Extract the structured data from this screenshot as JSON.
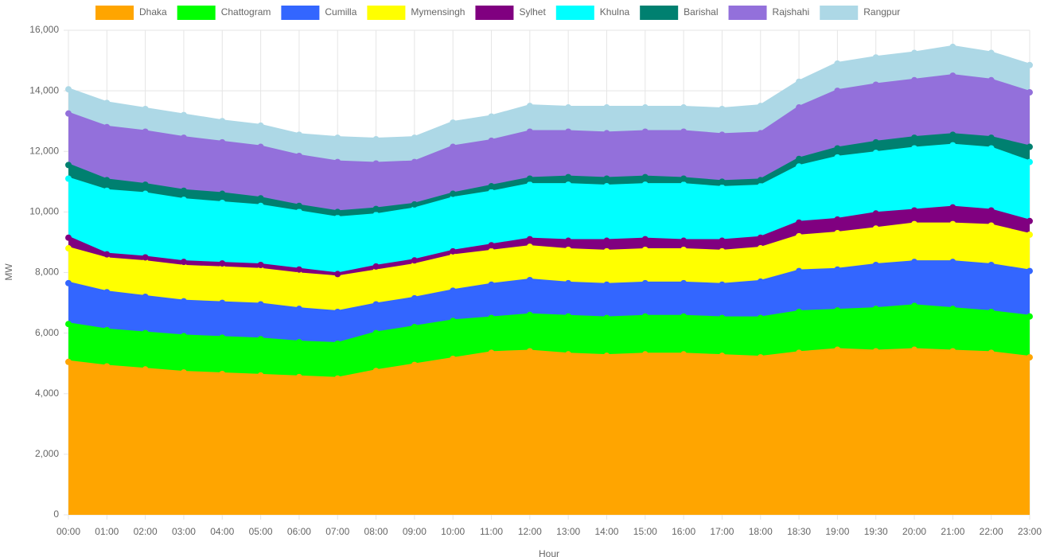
{
  "chart_data": {
    "type": "stacked_area",
    "x_label": "Hour",
    "y_label": "MW",
    "categories": [
      "00:00",
      "01:00",
      "02:00",
      "03:00",
      "04:00",
      "05:00",
      "06:00",
      "07:00",
      "08:00",
      "09:00",
      "10:00",
      "11:00",
      "12:00",
      "13:00",
      "14:00",
      "15:00",
      "16:00",
      "17:00",
      "18:00",
      "18:30",
      "19:00",
      "19:30",
      "20:00",
      "21:00",
      "22:00",
      "23:00"
    ],
    "series": [
      {
        "name": "Dhaka",
        "color": "#ffa500",
        "values": [
          5050,
          4900,
          4800,
          4700,
          4650,
          4600,
          4550,
          4500,
          4750,
          4950,
          5150,
          5350,
          5400,
          5300,
          5250,
          5300,
          5300,
          5250,
          5200,
          5350,
          5450,
          5400,
          5450,
          5400,
          5350,
          5200
        ]
      },
      {
        "name": "Chattogram",
        "color": "#00ff00",
        "values": [
          1250,
          1200,
          1200,
          1200,
          1200,
          1200,
          1150,
          1150,
          1250,
          1250,
          1250,
          1150,
          1200,
          1250,
          1250,
          1250,
          1250,
          1250,
          1300,
          1350,
          1300,
          1400,
          1450,
          1400,
          1350,
          1350
        ]
      },
      {
        "name": "Cumilla",
        "color": "#3366ff",
        "values": [
          1350,
          1250,
          1200,
          1150,
          1150,
          1150,
          1100,
          1050,
          950,
          950,
          1000,
          1100,
          1150,
          1100,
          1100,
          1100,
          1100,
          1100,
          1200,
          1350,
          1350,
          1450,
          1450,
          1550,
          1550,
          1500
        ]
      },
      {
        "name": "Mymensingh",
        "color": "#ffff00",
        "values": [
          1150,
          1100,
          1150,
          1150,
          1150,
          1150,
          1150,
          1150,
          1100,
          1100,
          1150,
          1100,
          1100,
          1100,
          1100,
          1100,
          1100,
          1100,
          1100,
          1150,
          1200,
          1200,
          1250,
          1250,
          1300,
          1200
        ]
      },
      {
        "name": "Sylhet",
        "color": "#800080",
        "values": [
          350,
          150,
          150,
          150,
          150,
          150,
          150,
          100,
          150,
          150,
          150,
          200,
          250,
          300,
          350,
          350,
          300,
          350,
          350,
          450,
          450,
          500,
          450,
          550,
          500,
          450
        ]
      },
      {
        "name": "Khulna",
        "color": "#00ffff",
        "values": [
          1950,
          2100,
          2100,
          2050,
          2000,
          1950,
          1900,
          1850,
          1700,
          1700,
          1750,
          1750,
          1800,
          1850,
          1800,
          1800,
          1850,
          1750,
          1700,
          1850,
          2050,
          2000,
          2050,
          2050,
          2050,
          1950
        ]
      },
      {
        "name": "Barishal",
        "color": "#008070",
        "values": [
          450,
          350,
          300,
          300,
          300,
          250,
          200,
          200,
          200,
          150,
          150,
          200,
          200,
          250,
          250,
          250,
          200,
          200,
          200,
          250,
          300,
          350,
          350,
          350,
          350,
          500
        ]
      },
      {
        "name": "Rajshahi",
        "color": "#9370db",
        "values": [
          1700,
          1750,
          1750,
          1750,
          1700,
          1700,
          1650,
          1650,
          1500,
          1400,
          1550,
          1500,
          1550,
          1500,
          1500,
          1500,
          1550,
          1550,
          1550,
          1700,
          1900,
          1900,
          1900,
          1950,
          1900,
          1800
        ]
      },
      {
        "name": "Rangpur",
        "color": "#add8e6",
        "values": [
          800,
          800,
          750,
          750,
          700,
          700,
          700,
          800,
          800,
          800,
          800,
          800,
          850,
          800,
          850,
          800,
          800,
          850,
          900,
          850,
          900,
          900,
          900,
          950,
          900,
          900
        ]
      }
    ],
    "ylim": [
      0,
      16000
    ],
    "yticks": [
      0,
      {
        "value": 2000,
        "label": "2,000"
      },
      {
        "value": 4000,
        "label": "4,000"
      },
      {
        "value": 6000,
        "label": "6,000"
      },
      {
        "value": 8000,
        "label": "8,000"
      },
      {
        "value": 10000,
        "label": "10,000"
      },
      {
        "value": 12000,
        "label": "12,000"
      },
      {
        "value": 14000,
        "label": "14,000"
      },
      {
        "value": 16000,
        "label": "16,000"
      }
    ],
    "grid": true,
    "legend": "top"
  }
}
